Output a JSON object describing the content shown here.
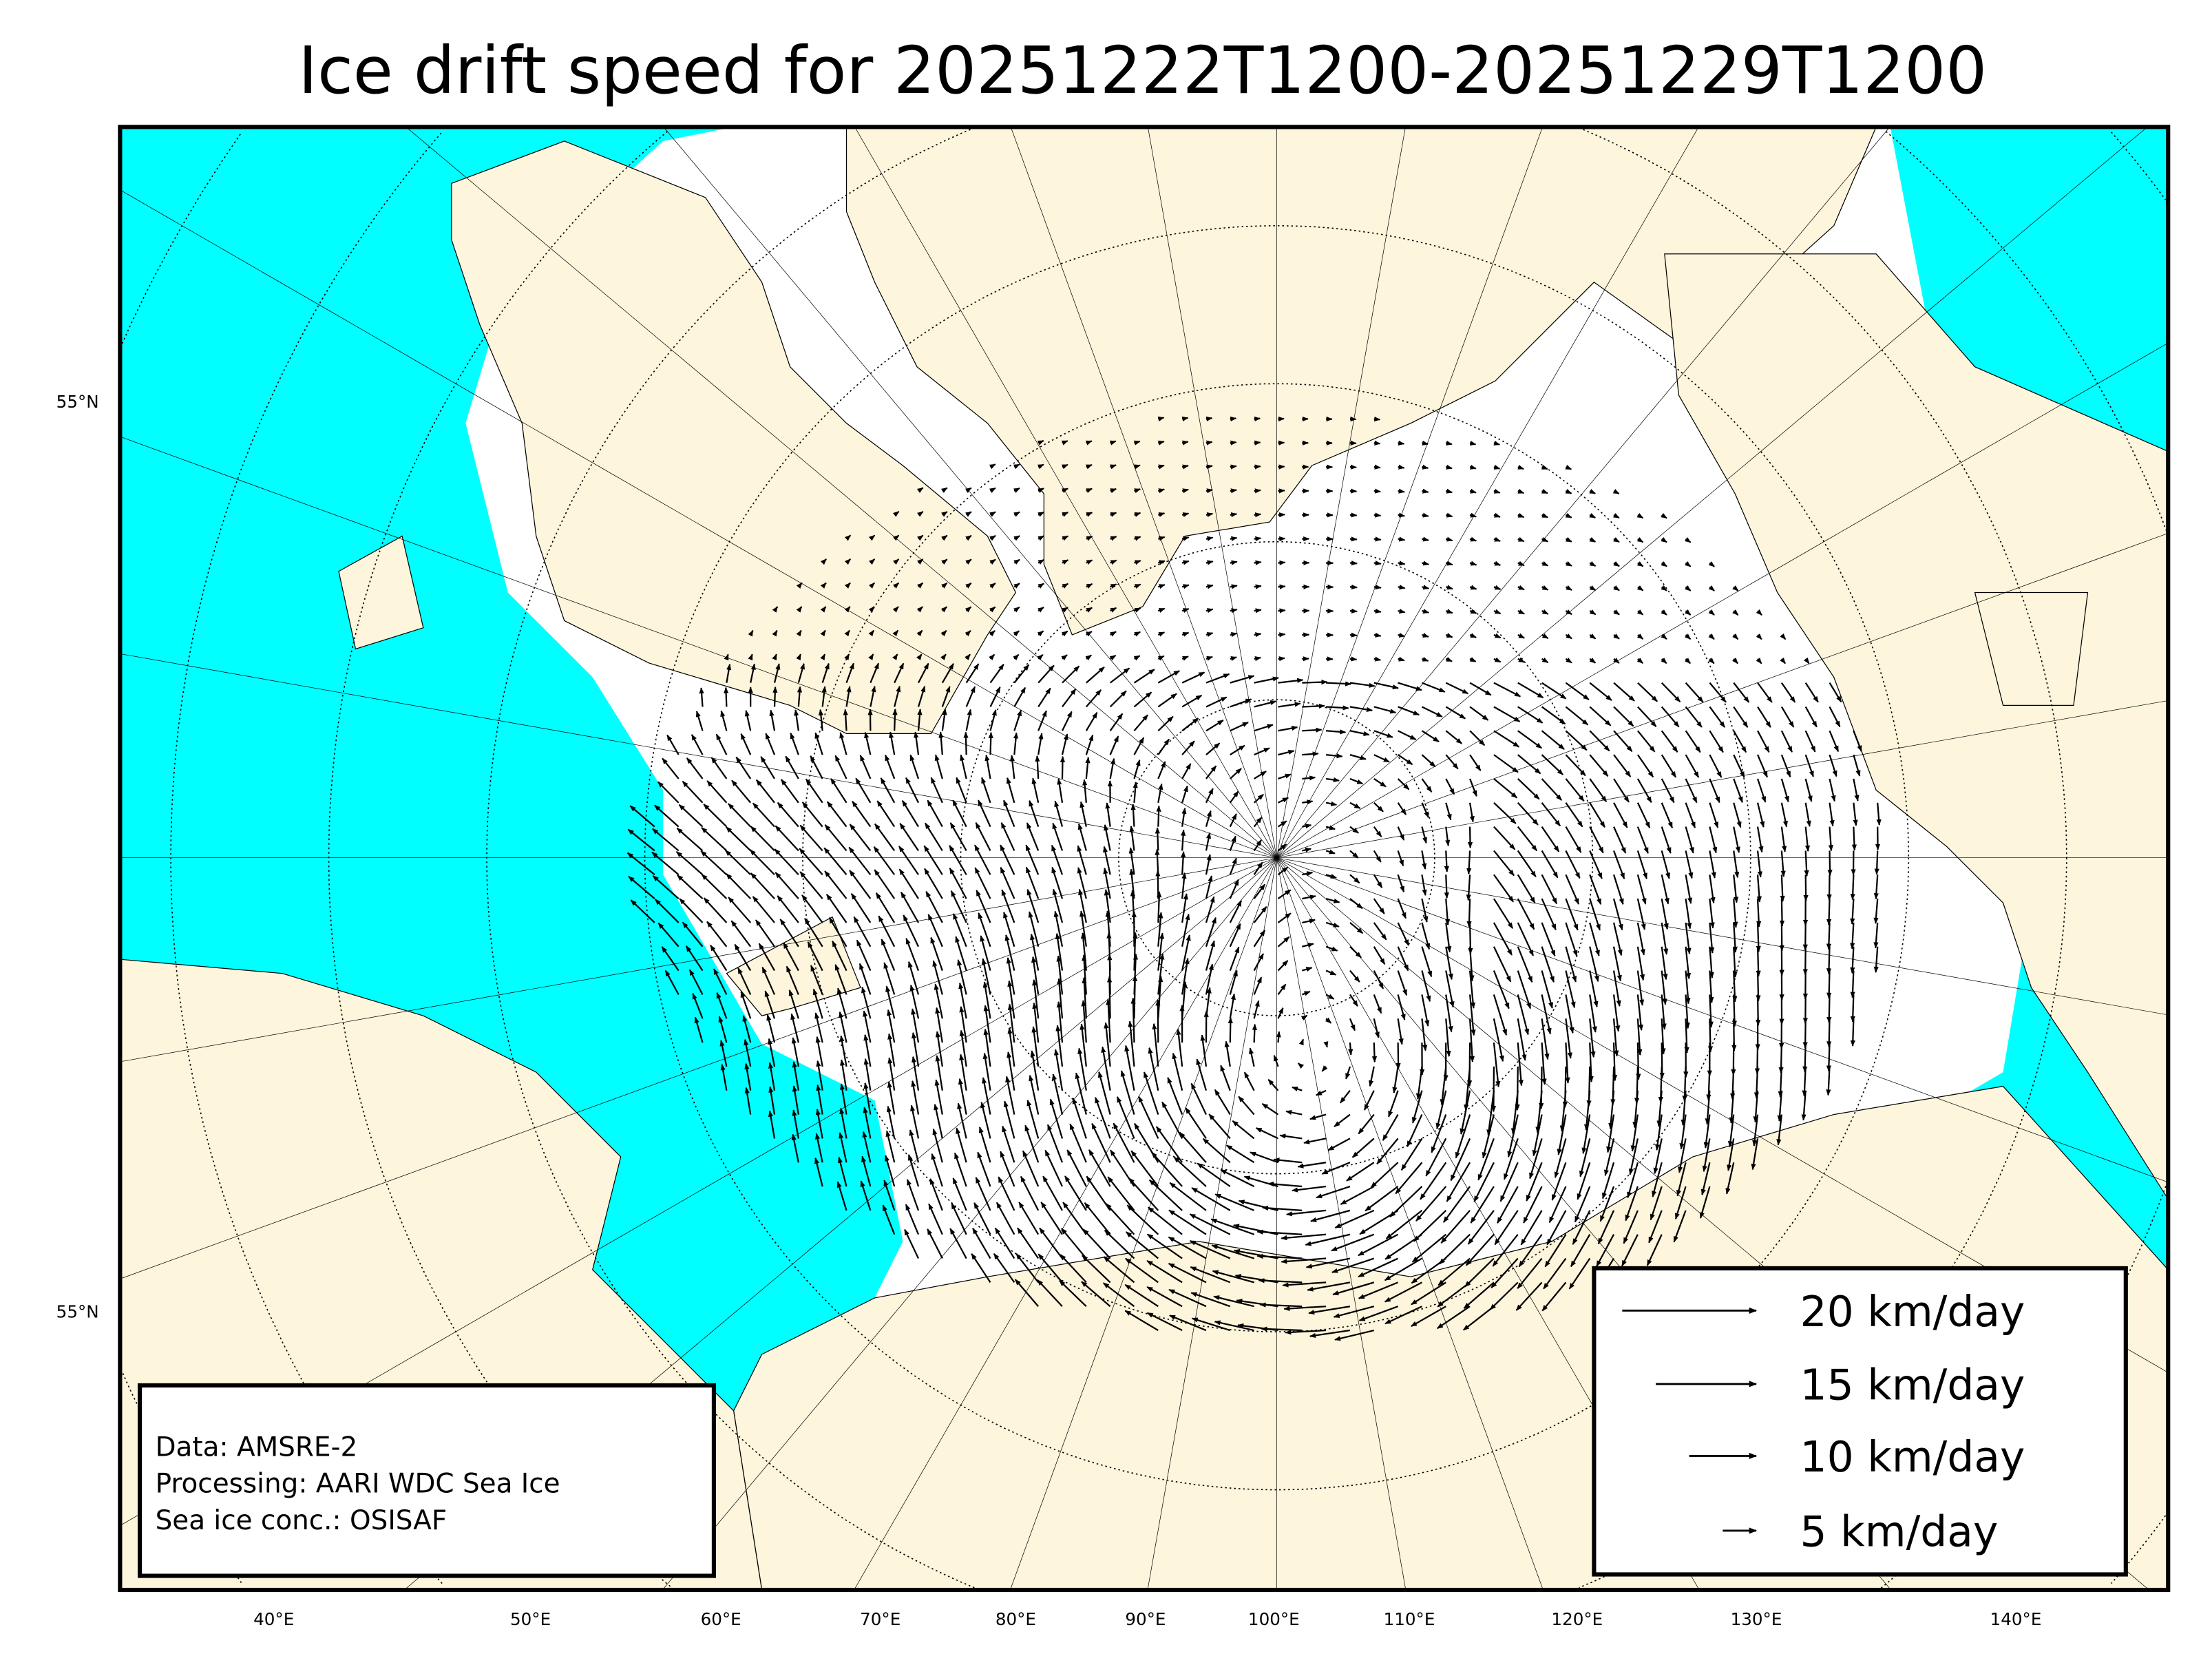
{
  "title": "Ice drift speed for 20251222T1200-20251229T1200",
  "colors": {
    "ocean": "#00ffff",
    "land": "#fdf5dc",
    "ice": "#ffffff",
    "arrows": "#000000"
  },
  "lat_labels": [
    "55°N",
    "55°N"
  ],
  "lon_labels": [
    "40°E",
    "50°E",
    "60°E",
    "70°E",
    "80°E",
    "90°E",
    "100°E",
    "110°E",
    "120°E",
    "130°E",
    "140°E"
  ],
  "info": {
    "line1": "Data: AMSRE-2",
    "line2": "Processing: AARI WDC Sea Ice",
    "line3": "Sea ice conc.: OSISAF"
  },
  "legend": [
    {
      "label": "20 km/day",
      "speed": 20
    },
    {
      "label": "15 km/day",
      "speed": 15
    },
    {
      "label": "10 km/day",
      "speed": 10
    },
    {
      "label": "5 km/day",
      "speed": 5
    }
  ]
}
